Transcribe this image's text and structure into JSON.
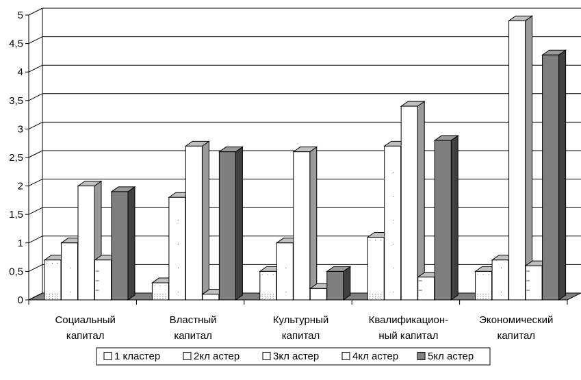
{
  "chart_data": {
    "type": "bar",
    "title": "",
    "xlabel": "",
    "ylabel": "",
    "ylim": [
      0,
      5
    ],
    "yticks": [
      "0",
      "0,5",
      "1",
      "1,5",
      "2",
      "2,5",
      "3",
      "3,5",
      "4",
      "4,5",
      "5"
    ],
    "grid": true,
    "legend_position": "bottom",
    "categories": [
      [
        "Социальный",
        "капитал"
      ],
      [
        "Властный",
        "капитал"
      ],
      [
        "Культурный",
        "капитал"
      ],
      [
        "Квалификацион-",
        "ный капитал"
      ],
      [
        "Экономический",
        "капитал"
      ]
    ],
    "series": [
      {
        "name": "1 кластер",
        "values": [
          0.7,
          0.3,
          0.5,
          1.1,
          0.5
        ],
        "color": "#ffffff",
        "pattern": "dots-bottom"
      },
      {
        "name": "2кл астер",
        "values": [
          1.0,
          1.8,
          1.0,
          2.7,
          0.7
        ],
        "color": "#ffffff",
        "pattern": "dots-sparse"
      },
      {
        "name": "3кл астер",
        "values": [
          2.0,
          2.7,
          2.6,
          3.4,
          4.9
        ],
        "color": "#ffffff",
        "pattern": "none"
      },
      {
        "name": "4кл астер",
        "values": [
          0.7,
          0.1,
          0.2,
          0.4,
          0.6
        ],
        "color": "#ffffff",
        "pattern": "dashes"
      },
      {
        "name": "5кл астер",
        "values": [
          1.9,
          2.6,
          0.5,
          2.8,
          4.3
        ],
        "color": "#7f7f7f",
        "pattern": "none"
      }
    ]
  }
}
